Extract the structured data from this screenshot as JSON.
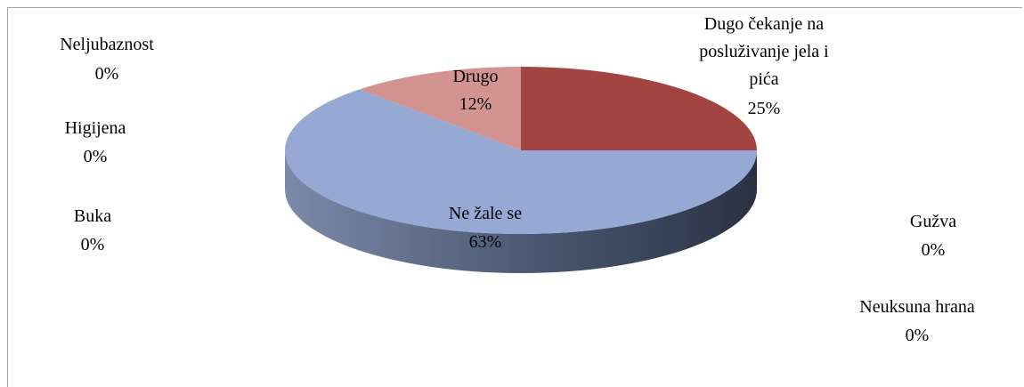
{
  "chart_data": {
    "type": "pie",
    "style": "3d",
    "title": "",
    "slices": [
      {
        "name": "Dugo čekanje na posluživanje jela i pića",
        "label_lines": [
          "Dugo čekanje na",
          "posluživanje jela i",
          "pića"
        ],
        "value": 25,
        "percent_label": "25%",
        "color": "#a24442"
      },
      {
        "name": "Gužva",
        "label_lines": [
          "Gužva"
        ],
        "value": 0,
        "percent_label": "0%",
        "color": "#7f9a48"
      },
      {
        "name": "Neuksuna hrana",
        "label_lines": [
          "Neuksuna hrana"
        ],
        "value": 0,
        "percent_label": "0%",
        "color": "#6a5092"
      },
      {
        "name": "Ne žale se",
        "label_lines": [
          "Ne žale se"
        ],
        "value": 63,
        "percent_label": "63%",
        "color": "#95a9d4"
      },
      {
        "name": "Buka",
        "label_lines": [
          "Buka"
        ],
        "value": 0,
        "percent_label": "0%",
        "color": "#3b9bb1"
      },
      {
        "name": "Higijena",
        "label_lines": [
          "Higijena"
        ],
        "value": 0,
        "percent_label": "0%",
        "color": "#e0873c"
      },
      {
        "name": "Neljubaznost",
        "label_lines": [
          "Neljubaznost"
        ],
        "value": 0,
        "percent_label": "0%",
        "color": "#8fa3cf"
      },
      {
        "name": "Drugo",
        "label_lines": [
          "Drugo"
        ],
        "value": 12,
        "percent_label": "12%",
        "color": "#d39491"
      }
    ]
  }
}
